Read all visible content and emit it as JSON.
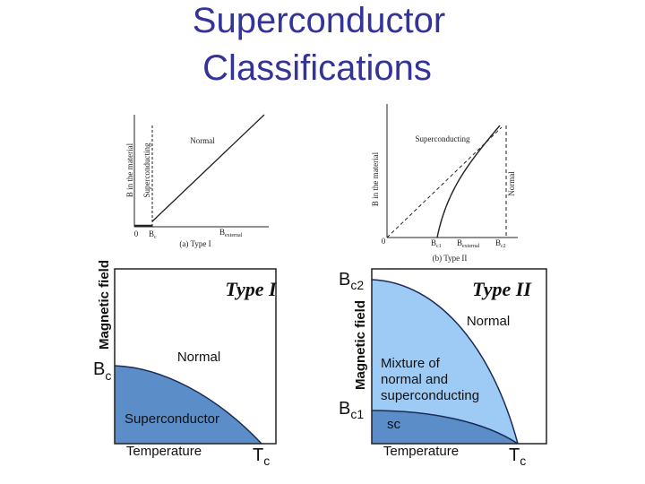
{
  "title": {
    "line1": "Superconductor",
    "line2": "Classifications"
  },
  "type1_field_plot": {
    "y_axis": "B in the material",
    "dashed_label": "Superconducting",
    "region": "Normal",
    "origin": "0",
    "bc": {
      "base": "B",
      "sub": "c"
    },
    "x_axis": {
      "base": "B",
      "sub": "external"
    },
    "caption": "(a)  Type I"
  },
  "type2_field_plot": {
    "y_axis": "B in the material",
    "region_sc": "Superconducting",
    "region_normal": "Normal",
    "origin": "0",
    "bc1": {
      "base": "B",
      "sub": "c1"
    },
    "x_axis": {
      "base": "B",
      "sub": "external"
    },
    "bc2": {
      "base": "B",
      "sub": "c2"
    },
    "caption": "(b)  Type II"
  },
  "type1_phase": {
    "title": "Type I",
    "y_axis": "Magnetic field",
    "bc": {
      "base": "B",
      "sub": "c"
    },
    "normal": "Normal",
    "sc": "Superconductor",
    "x_axis": "Temperature",
    "tc": {
      "base": "T",
      "sub": "c"
    }
  },
  "type2_phase": {
    "title": "Type II",
    "y_axis": "Magnetic field",
    "bc2": {
      "base": "B",
      "sub": "c2"
    },
    "bc1": {
      "base": "B",
      "sub": "c1"
    },
    "normal": "Normal",
    "mixed": [
      "Mixture of",
      "normal and",
      "superconducting"
    ],
    "sc": "sc",
    "x_axis": "Temperature",
    "tc": {
      "base": "T",
      "sub": "c"
    }
  }
}
